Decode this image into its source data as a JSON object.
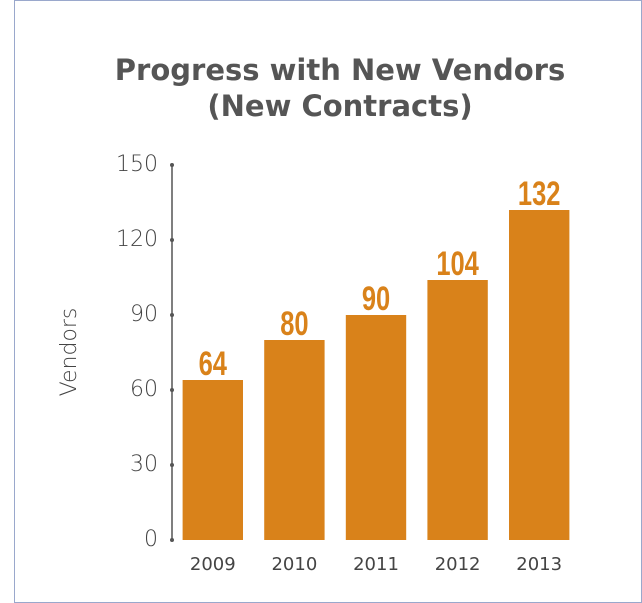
{
  "chart_data": {
    "type": "bar",
    "title": [
      "Progress with New Vendors",
      "(New Contracts)"
    ],
    "y_label": "Vendors",
    "categories": [
      "2009",
      "2010",
      "2011",
      "2012",
      "2013"
    ],
    "values": [
      64,
      80,
      90,
      104,
      132
    ],
    "color": "#d9821a",
    "ylim": [
      0,
      150
    ],
    "yticks": [
      0,
      30,
      60,
      90,
      120,
      150
    ],
    "grid": false
  }
}
